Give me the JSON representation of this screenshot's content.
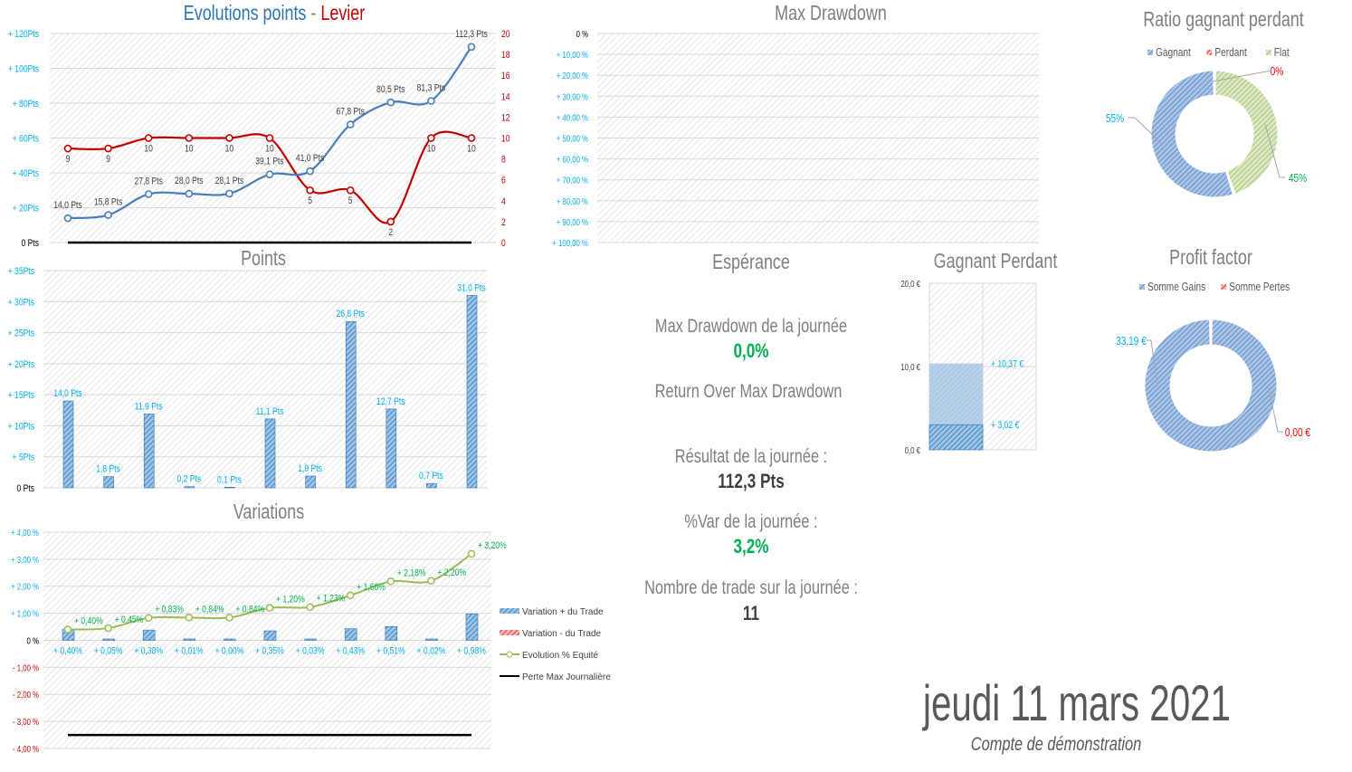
{
  "titles": {
    "evolution_a": "Evolutions points",
    "evolution_sep": " - ",
    "evolution_b": "Levier",
    "points": "Points",
    "variations": "Variations",
    "max_drawdown": "Max Drawdown",
    "esperance": "Espérance",
    "gagnant_perdant": "Gagnant Perdant",
    "ratio": "Ratio gagnant perdant",
    "profit_factor": "Profit factor"
  },
  "stats": {
    "max_dd_label": "Max Drawdown de la journée",
    "max_dd_value": "0,0%",
    "romd_label": "Return Over Max Drawdown",
    "result_label": "Résultat de la journée :",
    "result_value": "112,3 Pts",
    "var_label": "%Var de la journée :",
    "var_value": "3,2%",
    "trades_label": "Nombre de trade sur la journée :",
    "trades_value": "11"
  },
  "footer": {
    "date": "jeudi 11 mars 2021",
    "account": "Compte de démonstration"
  },
  "colors": {
    "cyan": "#00b0f0",
    "red": "#c00000",
    "blue": "#4f81bd",
    "green": "#9bbb59",
    "label_green": "#00b050",
    "gray": "#7f7f7f"
  },
  "chart_data": [
    {
      "id": "evolution",
      "type": "line",
      "title": "Evolutions points - Levier",
      "ylim": [
        0,
        120
      ],
      "y2lim": [
        0,
        20
      ],
      "yticks": [
        "0 Pts",
        "+ 20Pts",
        "+ 40Pts",
        "+ 60Pts",
        "+ 80Pts",
        "+ 100Pts",
        "+ 120Pts"
      ],
      "y2ticks": [
        "0",
        "2",
        "4",
        "6",
        "8",
        "10",
        "12",
        "14",
        "16",
        "18",
        "20"
      ],
      "series": [
        {
          "name": "Points",
          "axis": "left",
          "values": [
            14.0,
            15.8,
            27.8,
            28.0,
            28.1,
            39.1,
            41.0,
            67.8,
            80.5,
            81.3,
            112.3
          ],
          "labels": [
            "14,0 Pts",
            "15,8 Pts",
            "27,8 Pts",
            "28,0 Pts",
            "28,1 Pts",
            "39,1 Pts",
            "41,0 Pts",
            "67,8 Pts",
            "80,5 Pts",
            "81,3 Pts",
            "112,3 Pts"
          ]
        },
        {
          "name": "Levier",
          "axis": "right",
          "values": [
            9,
            9,
            10,
            10,
            10,
            10,
            5,
            5,
            2,
            10,
            10
          ],
          "labels": [
            "9",
            "9",
            "10",
            "10",
            "10",
            "10",
            "5",
            "5",
            "2",
            "10",
            "10"
          ]
        },
        {
          "name": "Perte Max",
          "axis": "left",
          "values": [
            0,
            0
          ]
        }
      ]
    },
    {
      "id": "points",
      "type": "bar",
      "title": "Points",
      "ylim": [
        0,
        35
      ],
      "yticks": [
        "0 Pts",
        "+ 5Pts",
        "+ 10Pts",
        "+ 15Pts",
        "+ 20Pts",
        "+ 25Pts",
        "+ 30Pts",
        "+ 35Pts"
      ],
      "values": [
        14.0,
        1.8,
        11.9,
        0.2,
        0.1,
        11.1,
        1.9,
        26.8,
        12.7,
        0.7,
        31.0
      ],
      "labels": [
        "14,0 Pts",
        "1,8 Pts",
        "11,9 Pts",
        "0,2 Pts",
        "0,1 Pts",
        "11,1 Pts",
        "1,9 Pts",
        "26,8 Pts",
        "12,7 Pts",
        "0,7 Pts",
        "31,0 Pts"
      ]
    },
    {
      "id": "variations",
      "type": "bar",
      "title": "Variations",
      "ylim": [
        -4,
        4
      ],
      "yticks": [
        "- 4,00 %",
        "- 3,00 %",
        "- 2,00 %",
        "- 1,00 %",
        "0 %",
        "+ 1,00 %",
        "+ 2,00 %",
        "+ 3,00 %",
        "+ 4,00 %"
      ],
      "series": [
        {
          "name": "Variation + du Trade",
          "values": [
            0.4,
            0.05,
            0.38,
            0.01,
            0.0,
            0.35,
            0.03,
            0.43,
            0.51,
            0.02,
            0.98
          ],
          "labels": [
            "+ 0,40%",
            "+ 0,05%",
            "+ 0,38%",
            "+ 0,01%",
            "+ 0,00%",
            "+ 0,35%",
            "+ 0,03%",
            "+ 0,43%",
            "+ 0,51%",
            "+ 0,02%",
            "+ 0,98%"
          ]
        },
        {
          "name": "Variation - du Trade",
          "values": []
        },
        {
          "name": "Evolution % Equité",
          "values": [
            0.4,
            0.45,
            0.83,
            0.84,
            0.84,
            1.2,
            1.23,
            1.66,
            2.18,
            2.2,
            3.2
          ],
          "labels": [
            "+ 0,40%",
            "+ 0,45%",
            "+ 0,83%",
            "+ 0,84%",
            "+ 0,84%",
            "+ 1,20%",
            "+ 1,23%",
            "+ 1,66%",
            "+ 2,18%",
            "+ 2,20%",
            "+ 3,20%"
          ]
        },
        {
          "name": "Perte Max Journalière",
          "values": [
            -3.5,
            -3.5
          ]
        }
      ],
      "legend": "right"
    },
    {
      "id": "max_drawdown",
      "type": "area",
      "title": "Max Drawdown",
      "ylim": [
        0,
        100
      ],
      "yticks": [
        "0 %",
        "+ 10,00 %",
        "+ 20,00 %",
        "+ 30,00 %",
        "+ 40,00 %",
        "+ 50,00 %",
        "+ 60,00 %",
        "+ 70,00 %",
        "+ 80,00 %",
        "+ 90,00 %",
        "+ 100,00 %"
      ],
      "values": []
    },
    {
      "id": "gagnant_perdant",
      "type": "bar",
      "title": "Gagnant Perdant",
      "ylim": [
        0,
        20
      ],
      "yticks": [
        "0,0 €",
        "10,0 €",
        "20,0 €"
      ],
      "values": [
        10.37,
        3.02
      ],
      "labels": [
        "+ 10,37 €",
        "+ 3,02 €"
      ]
    },
    {
      "id": "ratio",
      "type": "pie",
      "title": "Ratio gagnant perdant",
      "legend": "top",
      "slices": [
        {
          "name": "Gagnant",
          "value": 55,
          "label": "55%",
          "color": "#4f81bd"
        },
        {
          "name": "Perdant",
          "value": 0,
          "label": "0%",
          "color": "#c0504d"
        },
        {
          "name": "Flat",
          "value": 45,
          "label": "45%",
          "color": "#9bbb59"
        }
      ]
    },
    {
      "id": "profit_factor",
      "type": "pie",
      "title": "Profit factor",
      "legend": "top",
      "slices": [
        {
          "name": "Somme Gains",
          "value": 33.19,
          "label": "33,19 €",
          "color": "#4f81bd"
        },
        {
          "name": "Somme Pertes",
          "value": 0,
          "label": "0,00 €",
          "color": "#c0504d"
        }
      ]
    }
  ]
}
